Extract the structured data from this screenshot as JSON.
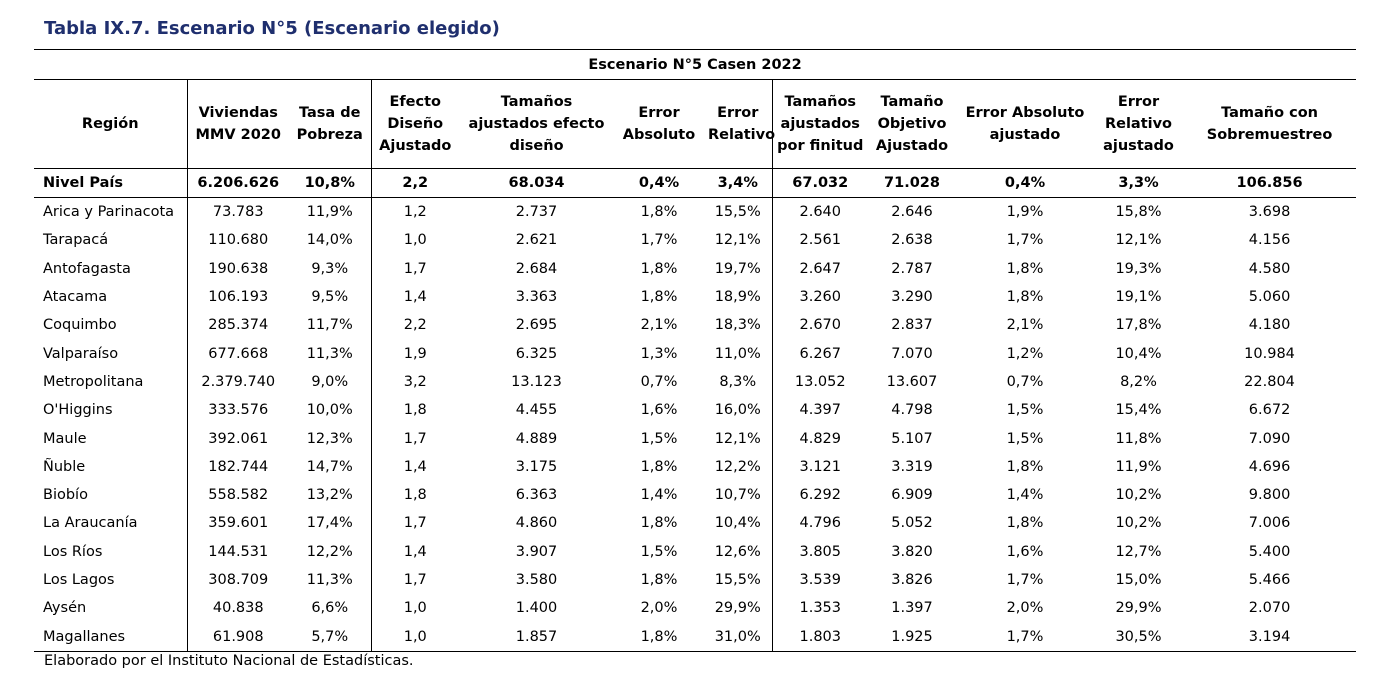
{
  "title": "Tabla IX.7. Escenario N°5 (Escenario elegido)",
  "scenario_header": "Escenario N°5 Casen 2022",
  "columns": [
    "Región",
    "Viviendas MMV 2020",
    "Tasa de Pobreza",
    "Efecto Diseño Ajustado",
    "Tamaños ajustados efecto diseño",
    "Error Absoluto",
    "Error Relativo",
    "Tamaños ajustados por finitud",
    "Tamaño Objetivo Ajustado",
    "Error Absoluto ajustado",
    "Error Relativo ajustado",
    "Tamaño con Sobremuestreo"
  ],
  "total": [
    "Nivel País",
    "6.206.626",
    "10,8%",
    "2,2",
    "68.034",
    "0,4%",
    "3,4%",
    "67.032",
    "71.028",
    "0,4%",
    "3,3%",
    "106.856"
  ],
  "rows": [
    [
      "Arica y Parinacota",
      "73.783",
      "11,9%",
      "1,2",
      "2.737",
      "1,8%",
      "15,5%",
      "2.640",
      "2.646",
      "1,9%",
      "15,8%",
      "3.698"
    ],
    [
      "Tarapacá",
      "110.680",
      "14,0%",
      "1,0",
      "2.621",
      "1,7%",
      "12,1%",
      "2.561",
      "2.638",
      "1,7%",
      "12,1%",
      "4.156"
    ],
    [
      "Antofagasta",
      "190.638",
      "9,3%",
      "1,7",
      "2.684",
      "1,8%",
      "19,7%",
      "2.647",
      "2.787",
      "1,8%",
      "19,3%",
      "4.580"
    ],
    [
      "Atacama",
      "106.193",
      "9,5%",
      "1,4",
      "3.363",
      "1,8%",
      "18,9%",
      "3.260",
      "3.290",
      "1,8%",
      "19,1%",
      "5.060"
    ],
    [
      "Coquimbo",
      "285.374",
      "11,7%",
      "2,2",
      "2.695",
      "2,1%",
      "18,3%",
      "2.670",
      "2.837",
      "2,1%",
      "17,8%",
      "4.180"
    ],
    [
      "Valparaíso",
      "677.668",
      "11,3%",
      "1,9",
      "6.325",
      "1,3%",
      "11,0%",
      "6.267",
      "7.070",
      "1,2%",
      "10,4%",
      "10.984"
    ],
    [
      "Metropolitana",
      "2.379.740",
      "9,0%",
      "3,2",
      "13.123",
      "0,7%",
      "8,3%",
      "13.052",
      "13.607",
      "0,7%",
      "8,2%",
      "22.804"
    ],
    [
      "O'Higgins",
      "333.576",
      "10,0%",
      "1,8",
      "4.455",
      "1,6%",
      "16,0%",
      "4.397",
      "4.798",
      "1,5%",
      "15,4%",
      "6.672"
    ],
    [
      "Maule",
      "392.061",
      "12,3%",
      "1,7",
      "4.889",
      "1,5%",
      "12,1%",
      "4.829",
      "5.107",
      "1,5%",
      "11,8%",
      "7.090"
    ],
    [
      "Ñuble",
      "182.744",
      "14,7%",
      "1,4",
      "3.175",
      "1,8%",
      "12,2%",
      "3.121",
      "3.319",
      "1,8%",
      "11,9%",
      "4.696"
    ],
    [
      "Biobío",
      "558.582",
      "13,2%",
      "1,8",
      "6.363",
      "1,4%",
      "10,7%",
      "6.292",
      "6.909",
      "1,4%",
      "10,2%",
      "9.800"
    ],
    [
      "La Araucanía",
      "359.601",
      "17,4%",
      "1,7",
      "4.860",
      "1,8%",
      "10,4%",
      "4.796",
      "5.052",
      "1,8%",
      "10,2%",
      "7.006"
    ],
    [
      "Los Ríos",
      "144.531",
      "12,2%",
      "1,4",
      "3.907",
      "1,5%",
      "12,6%",
      "3.805",
      "3.820",
      "1,6%",
      "12,7%",
      "5.400"
    ],
    [
      "Los Lagos",
      "308.709",
      "11,3%",
      "1,7",
      "3.580",
      "1,8%",
      "15,5%",
      "3.539",
      "3.826",
      "1,7%",
      "15,0%",
      "5.466"
    ],
    [
      "Aysén",
      "40.838",
      "6,6%",
      "1,0",
      "1.400",
      "2,0%",
      "29,9%",
      "1.353",
      "1.397",
      "2,0%",
      "29,9%",
      "2.070"
    ],
    [
      "Magallanes",
      "61.908",
      "5,7%",
      "1,0",
      "1.857",
      "1,8%",
      "31,0%",
      "1.803",
      "1.925",
      "1,7%",
      "30,5%",
      "3.194"
    ]
  ],
  "footnote": "Elaborado por el Instituto Nacional de Estadísticas."
}
